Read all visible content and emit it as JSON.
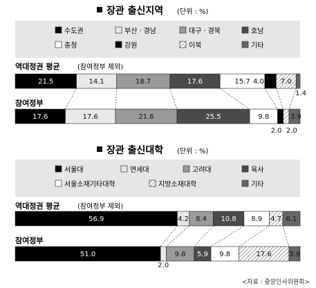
{
  "colors": {
    "background": "#ffffff",
    "legend_box": "#e6e6e6",
    "black": "#000000",
    "light_gray": "#e8e8e8",
    "mid_gray": "#9a9a9a",
    "dark_gray": "#4a4a4a",
    "white": "#ffffff",
    "slate": "#666666",
    "hatch": "hatched"
  },
  "source_note": "<자료 : 중앙인사위원회>",
  "chart_data": [
    {
      "type": "stacked-bar",
      "title": "장관 출신지역",
      "unit": "(단위 : %)",
      "legend": [
        {
          "label": "수도권",
          "fill": "black"
        },
        {
          "label": "부산ㆍ경남",
          "fill": "light_gray"
        },
        {
          "label": "대구ㆍ경북",
          "fill": "mid_gray"
        },
        {
          "label": "호남",
          "fill": "dark_gray"
        },
        {
          "label": "충청",
          "fill": "white"
        },
        {
          "label": "강원",
          "fill": "black"
        },
        {
          "label": "이북",
          "fill": "hatch"
        },
        {
          "label": "기타",
          "fill": "slate"
        }
      ],
      "series": [
        {
          "name": "역대정권 평균",
          "note": "(참여정부 제외)",
          "values": [
            21.5,
            14.1,
            18.7,
            17.6,
            15.7,
            4.0,
            7.0,
            1.4
          ],
          "labels": [
            "21.5",
            "14.1",
            "18.7",
            "17.6",
            "15.7",
            "4.0",
            "7.0",
            "1.4"
          ]
        },
        {
          "name": "참여정부",
          "note": "",
          "values": [
            17.6,
            17.6,
            21.6,
            25.5,
            9.8,
            2.0,
            2.0,
            3.9
          ],
          "labels": [
            "17.6",
            "17.6",
            "21.6",
            "25.5",
            "9.8",
            "2.0",
            "2.0",
            "3.9"
          ]
        }
      ]
    },
    {
      "type": "stacked-bar",
      "title": "장관 출신대학",
      "unit": "(단위 : %)",
      "legend": [
        {
          "label": "서울대",
          "fill": "black"
        },
        {
          "label": "연세대",
          "fill": "light_gray"
        },
        {
          "label": "고려대",
          "fill": "mid_gray"
        },
        {
          "label": "육사",
          "fill": "dark_gray"
        },
        {
          "label": "서울소재기타대학",
          "fill": "white"
        },
        {
          "label": "지방소재대학",
          "fill": "hatch"
        },
        {
          "label": "기타",
          "fill": "slate"
        }
      ],
      "series": [
        {
          "name": "역대정권 평균",
          "note": "(참여정부 제외)",
          "values": [
            56.9,
            4.2,
            8.4,
            10.8,
            8.9,
            4.7,
            6.1
          ],
          "labels": [
            "56.9",
            "4.2",
            "8.4",
            "10.8",
            "8.9",
            "4.7",
            "6.1"
          ]
        },
        {
          "name": "참여정부",
          "note": "",
          "values": [
            51.0,
            2.0,
            9.8,
            5.9,
            9.8,
            17.6,
            3.9
          ],
          "labels": [
            "51.0",
            "2.0",
            "9.8",
            "5.9",
            "9.8",
            "17.6",
            "3.9"
          ]
        }
      ]
    }
  ]
}
